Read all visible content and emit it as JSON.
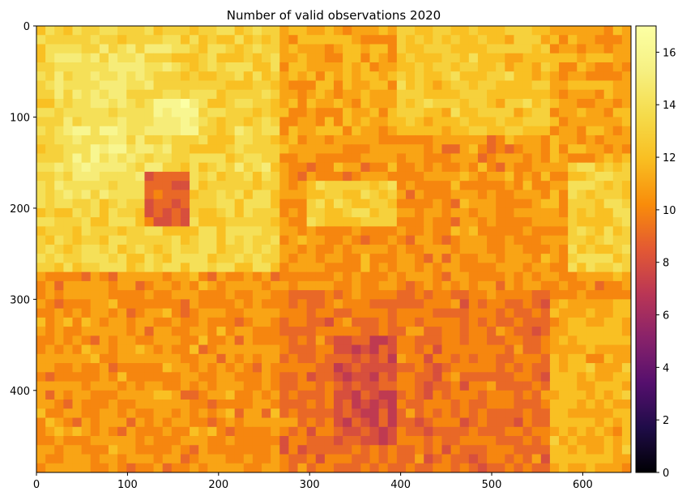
{
  "chart_data": {
    "type": "heatmap",
    "title": "Number of valid observations 2020",
    "xlabel": "",
    "ylabel": "",
    "x_ticks": [
      "0",
      "100",
      "200",
      "300",
      "400",
      "500",
      "600"
    ],
    "y_ticks": [
      "0",
      "100",
      "200",
      "300",
      "400"
    ],
    "xlim": [
      0,
      653
    ],
    "ylim": [
      490,
      0
    ],
    "colorbar": {
      "colormap": "inferno",
      "range": [
        0,
        17
      ],
      "ticks": [
        "0",
        "2",
        "4",
        "6",
        "8",
        "10",
        "12",
        "14",
        "16"
      ]
    },
    "grid_rows": 49,
    "grid_cols": 66,
    "regions": [
      {
        "desc": "background",
        "value": 10.5
      },
      {
        "x0": 0,
        "x1": 270,
        "y0": 0,
        "y1": 270,
        "value": 13
      },
      {
        "x0": 20,
        "x1": 150,
        "y0": 20,
        "y1": 190,
        "value": 14
      },
      {
        "x0": 40,
        "x1": 100,
        "y0": 110,
        "y1": 160,
        "value": 15
      },
      {
        "x0": 130,
        "x1": 180,
        "y0": 80,
        "y1": 120,
        "value": 15.5
      },
      {
        "x0": 220,
        "x1": 260,
        "y0": 110,
        "y1": 160,
        "value": 14
      },
      {
        "x0": 300,
        "x1": 360,
        "y0": 0,
        "y1": 50,
        "value": 9.5
      },
      {
        "x0": 270,
        "x1": 400,
        "y0": 0,
        "y1": 120,
        "value": 11
      },
      {
        "x0": 400,
        "x1": 560,
        "y0": 0,
        "y1": 120,
        "value": 12.5
      },
      {
        "x0": 560,
        "x1": 653,
        "y0": 0,
        "y1": 150,
        "value": 11
      },
      {
        "x0": 300,
        "x1": 400,
        "y0": 170,
        "y1": 220,
        "value": 13
      },
      {
        "x0": 580,
        "x1": 653,
        "y0": 150,
        "y1": 270,
        "value": 13
      },
      {
        "x0": 120,
        "x1": 170,
        "y0": 160,
        "y1": 220,
        "value": 8.5
      },
      {
        "x0": 270,
        "x1": 560,
        "y0": 290,
        "y1": 490,
        "value": 9.5
      },
      {
        "x0": 330,
        "x1": 400,
        "y0": 340,
        "y1": 460,
        "value": 8
      },
      {
        "x0": 0,
        "x1": 270,
        "y0": 270,
        "y1": 490,
        "value": 10.5
      },
      {
        "x0": 560,
        "x1": 653,
        "y0": 300,
        "y1": 490,
        "value": 11.5
      }
    ]
  }
}
